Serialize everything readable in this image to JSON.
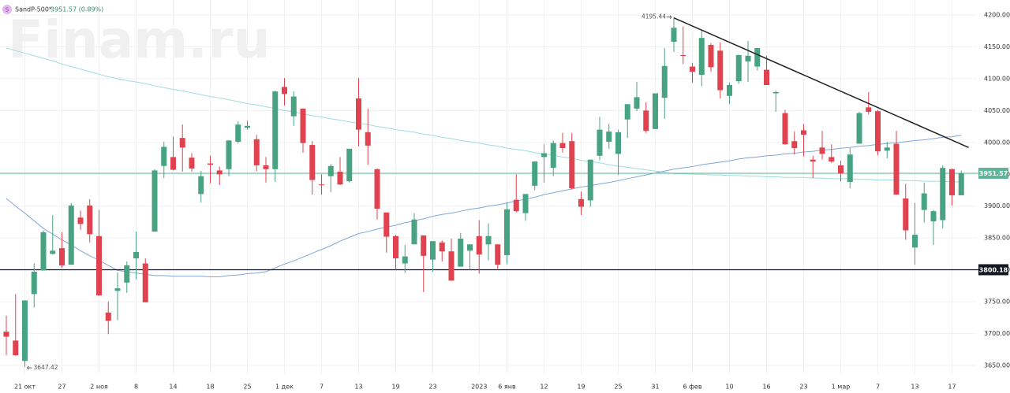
{
  "chart_data": {
    "type": "candlestick",
    "title": "SandP-500*",
    "icon": "S",
    "quote": "3951.57 (0.89%)",
    "watermark": "Finam.ru",
    "up_color": "#47a382",
    "down_color": "#e0434f",
    "grid": true,
    "categories": [
      null,
      null,
      "21 окт",
      null,
      null,
      null,
      "27",
      null,
      null,
      null,
      "2 ноя",
      null,
      null,
      null,
      "8",
      null,
      null,
      null,
      "14",
      null,
      null,
      null,
      "18",
      null,
      null,
      null,
      "25",
      null,
      null,
      null,
      "1 дек",
      null,
      null,
      null,
      "7",
      null,
      null,
      null,
      "13",
      null,
      null,
      null,
      "19",
      null,
      null,
      null,
      "23",
      null,
      null,
      null,
      null,
      "2023",
      null,
      null,
      "6 янв",
      null,
      null,
      null,
      "12",
      null,
      null,
      null,
      "19",
      null,
      null,
      null,
      "25",
      null,
      null,
      null,
      "31",
      null,
      null,
      null,
      "6 фев",
      null,
      null,
      null,
      "10",
      null,
      null,
      null,
      "16",
      null,
      null,
      null,
      "23",
      null,
      null,
      null,
      "1 мар",
      null,
      null,
      null,
      "7",
      null,
      null,
      null,
      "13",
      null,
      null,
      null,
      "17",
      null
    ],
    "open": [
      3703,
      3689,
      3657,
      3762,
      3799,
      3825,
      3834,
      3808,
      3882,
      3901,
      3853,
      3733,
      3767,
      3780,
      3818,
      3810,
      3860,
      3963,
      3977,
      4007,
      3976,
      3919,
      3967,
      3956,
      3958,
      4001,
      4023,
      4005,
      3964,
      3958,
      4087,
      4041,
      4053,
      3996,
      3934,
      3947,
      3954,
      3939,
      4069,
      4016,
      3958,
      3890,
      3853,
      3810,
      3840,
      3854,
      3816,
      3843,
      3829,
      3805,
      3830,
      3853,
      3840,
      3840,
      3823,
      3910,
      3889,
      3932,
      3977,
      3960,
      3999,
      4002,
      3911,
      3909,
      3979,
      4001,
      3982,
      4036,
      4053,
      4050,
      4021,
      4070,
      4158,
      4137,
      4119,
      4106,
      4153,
      4144,
      4073,
      4096,
      4127,
      4119,
      4114,
      4077,
      4046,
      4002,
      4019,
      3973,
      3992,
      3977,
      3964,
      3938,
      3998,
      4055,
      4049,
      3987,
      3998,
      3912,
      3835,
      3894,
      3876,
      3878,
      3958,
      3917
    ],
    "high": [
      3728,
      3762,
      3752,
      3810,
      3862,
      3886,
      3859,
      3905,
      3893,
      3911,
      3894,
      3750,
      3796,
      3813,
      3860,
      3818,
      3958,
      4001,
      4009,
      4028,
      3983,
      3955,
      3979,
      3962,
      4004,
      4033,
      4034,
      4012,
      3977,
      4081,
      4101,
      4080,
      4053,
      4002,
      3950,
      3966,
      3977,
      3990,
      4101,
      4053,
      3959,
      3890,
      3855,
      3839,
      3889,
      3854,
      3845,
      3846,
      3849,
      3858,
      3840,
      3878,
      3873,
      3840,
      3906,
      3950,
      3919,
      3970,
      3997,
      4003,
      4015,
      4015,
      3923,
      3973,
      4040,
      4029,
      4020,
      4060,
      4095,
      4063,
      4077,
      4148,
      4195.44,
      4182,
      4125,
      4176,
      4156,
      4157,
      4094,
      4138,
      4159,
      4148,
      4136,
      4081,
      4051,
      4017,
      4029,
      3979,
      4018,
      3997,
      3971,
      3991,
      4048,
      4079,
      4051,
      4001,
      4018,
      3935,
      3905,
      3937,
      3894,
      3964,
      3959,
      3956
    ],
    "low": [
      3666,
      3665,
      3647.42,
      3741,
      3799,
      3824,
      3803,
      3808,
      3863,
      3843,
      3759,
      3699,
      3721,
      3764,
      3785,
      3749,
      3860,
      3944,
      3956,
      3954,
      3954,
      3906,
      3936,
      3933,
      3947,
      3998,
      4020,
      3955,
      3937,
      3938,
      4058,
      4026,
      3984,
      3918,
      3918,
      3922,
      3933,
      3937,
      3994,
      3965,
      3879,
      3827,
      3800,
      3795,
      3840,
      3765,
      3797,
      3813,
      3783,
      3805,
      3800,
      3794,
      3815,
      3802,
      3809,
      3890,
      3877,
      3925,
      3937,
      3947,
      3984,
      3926,
      3886,
      3899,
      3972,
      3990,
      3949,
      4007,
      4049,
      4015,
      4021,
      4037,
      4142,
      4123,
      4094,
      4088,
      4111,
      4069,
      4060,
      4092,
      4095,
      4113,
      4091,
      4048,
      3997,
      3981,
      3978,
      3944,
      3973,
      3968,
      3939,
      3928,
      3998,
      4044,
      3980,
      3975,
      3918,
      3847,
      3808,
      3874,
      3839,
      3865,
      3901,
      3917
    ],
    "close": [
      3695,
      3666,
      3752,
      3797,
      3859,
      3830,
      3807,
      3901,
      3872,
      3856,
      3760,
      3720,
      3771,
      3807,
      3828,
      3749,
      3956,
      3993,
      3957,
      3992,
      3959,
      3947,
      3965,
      3950,
      4003,
      4028,
      4026,
      3964,
      3958,
      4080,
      4076,
      4072,
      3999,
      3941,
      3933,
      3963,
      3934,
      3990,
      4020,
      3995,
      3896,
      3852,
      3818,
      3821,
      3879,
      3822,
      3845,
      3829,
      3783,
      3849,
      3840,
      3824,
      3853,
      3808,
      3895,
      3892,
      3919,
      3970,
      3983,
      3999,
      3991,
      3928,
      3899,
      3973,
      4020,
      4017,
      4016,
      4060,
      4071,
      4018,
      4077,
      4120,
      4180,
      4136,
      4111,
      4164,
      4118,
      4082,
      4090,
      4137,
      4136,
      4148,
      4090,
      4079,
      3997,
      3991,
      4012,
      3970,
      3982,
      3970,
      3951,
      3981,
      4046,
      4048,
      3986,
      3992,
      3918,
      3862,
      3855,
      3920,
      3892,
      3960,
      3917,
      3951.57
    ],
    "series": [
      {
        "color": "#9fdcdc",
        "values": [
          4148,
          4144,
          4140,
          4136,
          4132,
          4128,
          4123,
          4119,
          4115,
          4111,
          4107,
          4103,
          4100,
          4097,
          4095,
          4092,
          4089,
          4086,
          4083,
          4081,
          4078,
          4075,
          4072,
          4070,
          4067,
          4064,
          4061,
          4059,
          4056,
          4053,
          4050,
          4048,
          4045,
          4042,
          4040,
          4037,
          4035,
          4032,
          4030,
          4028,
          4025,
          4023,
          4020,
          4018,
          4016,
          4013,
          4011,
          4008,
          4006,
          4003,
          4001,
          3999,
          3996,
          3994,
          3991,
          3989,
          3987,
          3984,
          3982,
          3980,
          3977,
          3975,
          3972,
          3970,
          3968,
          3965,
          3963,
          3961,
          3959,
          3957,
          3955,
          3953,
          3951,
          3951,
          3950,
          3950,
          3949,
          3949,
          3948,
          3948,
          3947,
          3947,
          3946,
          3946,
          3945,
          3945,
          3945,
          3944,
          3944,
          3943,
          3943,
          3943,
          3942,
          3942,
          3941,
          3941,
          3941,
          3940,
          3940,
          3939,
          3939,
          3939,
          3938,
          3938
        ]
      },
      {
        "color": "#7fa7d9",
        "values": [
          3912,
          3900,
          3889,
          3877,
          3865,
          3856,
          3847,
          3839,
          3830,
          3822,
          3815,
          3807,
          3799,
          3797,
          3795,
          3793,
          3791,
          3791,
          3790,
          3790,
          3790,
          3790,
          3789,
          3789,
          3791,
          3792,
          3794,
          3795,
          3797,
          3803,
          3809,
          3814,
          3820,
          3826,
          3832,
          3838,
          3845,
          3851,
          3857,
          3860,
          3864,
          3867,
          3870,
          3874,
          3877,
          3880,
          3884,
          3887,
          3889,
          3892,
          3895,
          3897,
          3900,
          3902,
          3905,
          3908,
          3911,
          3914,
          3918,
          3921,
          3924,
          3927,
          3930,
          3932,
          3935,
          3937,
          3940,
          3943,
          3946,
          3949,
          3952,
          3955,
          3958,
          3960,
          3962,
          3965,
          3967,
          3969,
          3971,
          3974,
          3976,
          3977,
          3979,
          3980,
          3982,
          3983,
          3985,
          3986,
          3988,
          3989,
          3991,
          3992,
          3994,
          3995,
          3997,
          3998,
          4000,
          4001,
          4003,
          4004,
          4006,
          4008,
          4009,
          4011
        ]
      }
    ],
    "levels": [
      {
        "value": 3951.57,
        "color": "#5fb59a"
      },
      {
        "value": 3800.18,
        "color": "#131722"
      }
    ],
    "trend_line": {
      "x": [
        72,
        103.8
      ],
      "y": [
        4195.44,
        3992
      ],
      "color": "#222"
    },
    "ylim": [
      3637.6,
      4223.5
    ],
    "yticks": [
      {
        "value": 3650,
        "label": "3650.00"
      },
      {
        "value": 3700,
        "label": "3700.00"
      },
      {
        "value": 3750,
        "label": "3750.00"
      },
      {
        "value": 3800,
        "label": "3800.00"
      },
      {
        "value": 3850,
        "label": "3850.00"
      },
      {
        "value": 3900,
        "label": "3900.00"
      },
      {
        "value": 3950,
        "label": "3950.00"
      },
      {
        "value": 4000,
        "label": "4000.00"
      },
      {
        "value": 4050,
        "label": "4050.00"
      },
      {
        "value": 4100,
        "label": "4100.00"
      },
      {
        "value": 4150,
        "label": "4150.00"
      },
      {
        "value": 4200,
        "label": "4200.00"
      }
    ]
  }
}
